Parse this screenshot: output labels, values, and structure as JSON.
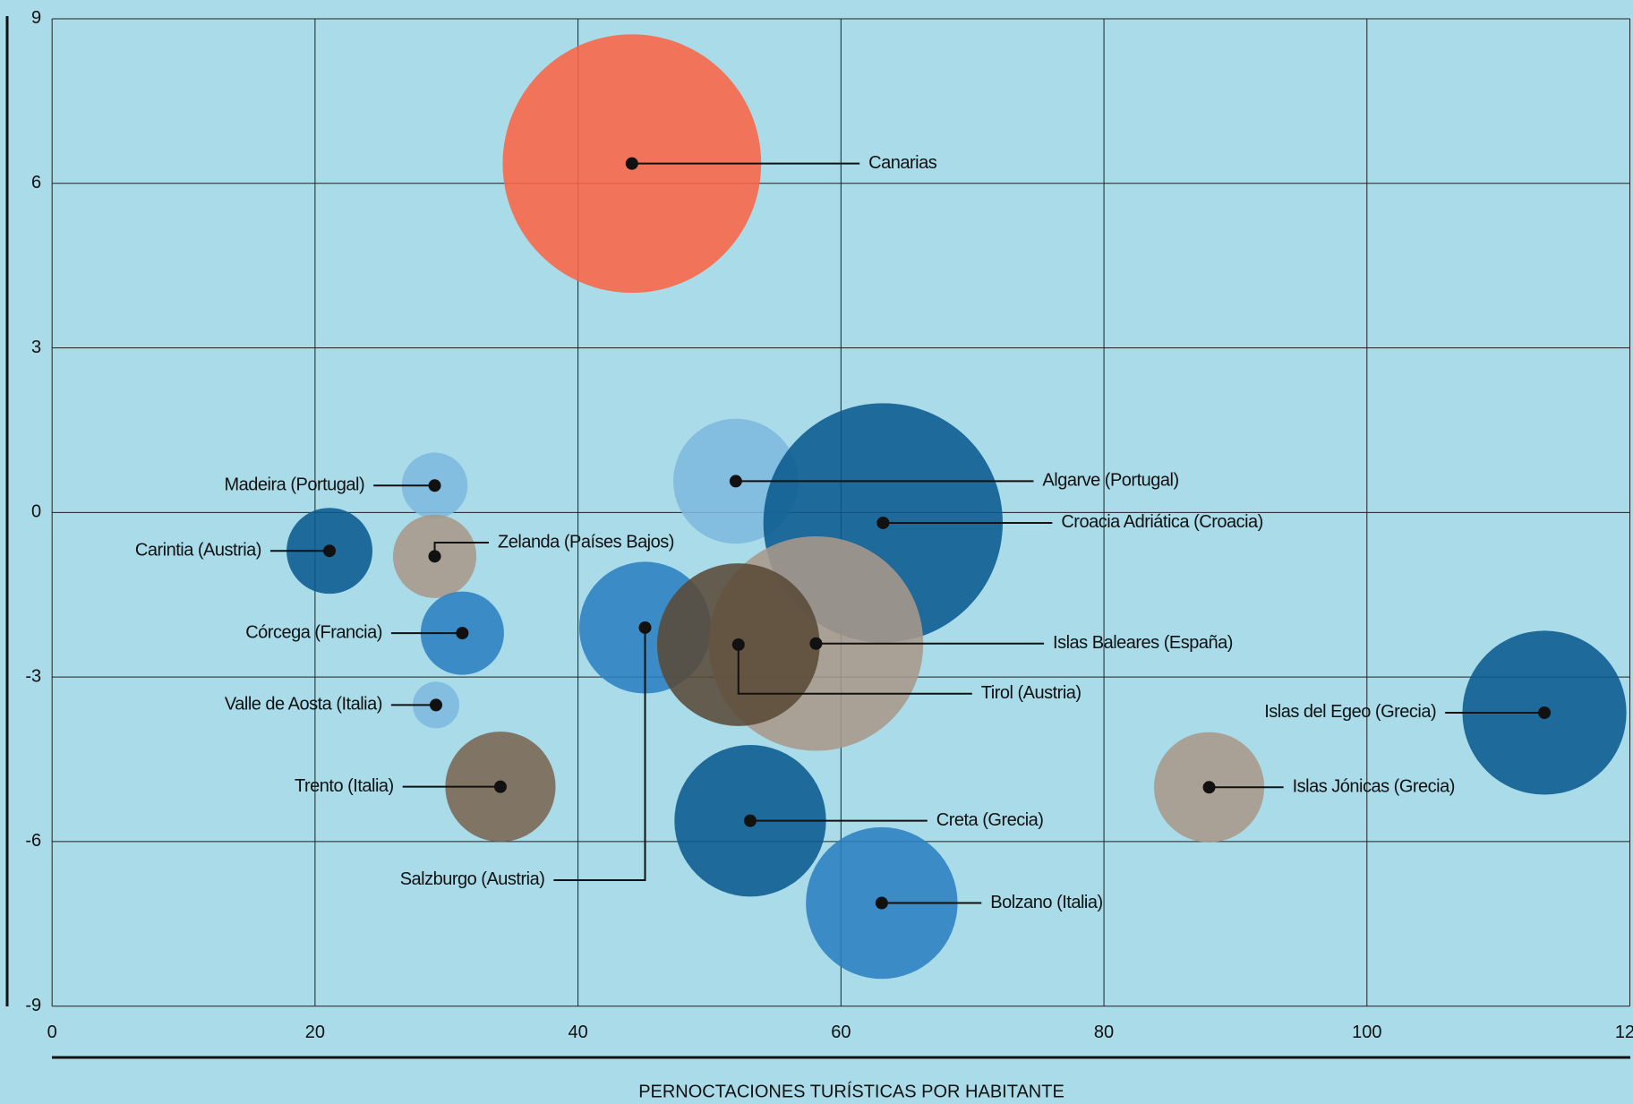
{
  "chart_data": {
    "type": "bubble",
    "xlabel": "PERNOCTACIONES TURÍSTICAS POR HABITANTE",
    "labels": [
      "Canarias",
      "Algarve (Portugal)",
      "Croacia Adriática (Croacia)",
      "Madeira (Portugal)",
      "Carintia (Austria)",
      "Zelanda (Países Bajos)",
      "Córcega (Francia)",
      "Valle de Aosta (Italia)",
      "Trento (Italia)",
      "Salzburgo (Austria)",
      "Islas Baleares (España)",
      "Tirol (Austria)",
      "Creta (Grecia)",
      "Bolzano (Italia)",
      "Islas del Egeo (Grecia)",
      "Islas Jónicas (Grecia)"
    ],
    "x": [
      44.1,
      52.0,
      63.2,
      29.1,
      21.1,
      29.1,
      31.2,
      29.2,
      34.1,
      45.1,
      58.1,
      52.2,
      53.1,
      63.1,
      113.5,
      88.0
    ],
    "values": [
      6.36,
      0.57,
      -0.19,
      0.49,
      -0.7,
      -0.8,
      -2.2,
      -3.51,
      -5.0,
      -2.1,
      -2.39,
      -2.41,
      -5.62,
      -7.12,
      -3.65,
      -5.01
    ],
    "sizes": [
      154,
      36,
      132,
      10,
      17,
      16,
      16,
      5,
      28,
      40,
      106,
      61,
      53,
      53,
      62,
      28
    ],
    "colors": [
      "#fb6444",
      "#7db8dd",
      "#0a5a8e",
      "#7db8dd",
      "#0a5a8e",
      "#a8998a",
      "#2b80c2",
      "#7db8dd",
      "#7a6652",
      "#2b80c2",
      "#a8998a",
      "#5a4a38",
      "#0a5a8e",
      "#2b80c2",
      "#0a5a8e",
      "#a8998a"
    ],
    "xlim": [
      0,
      120
    ],
    "xticks": [
      0,
      20,
      40,
      60,
      80,
      100,
      120
    ],
    "ylim": [
      -9,
      9
    ],
    "yticks": [
      -9,
      -6,
      -3,
      0,
      3,
      6,
      9
    ],
    "grid": true
  }
}
